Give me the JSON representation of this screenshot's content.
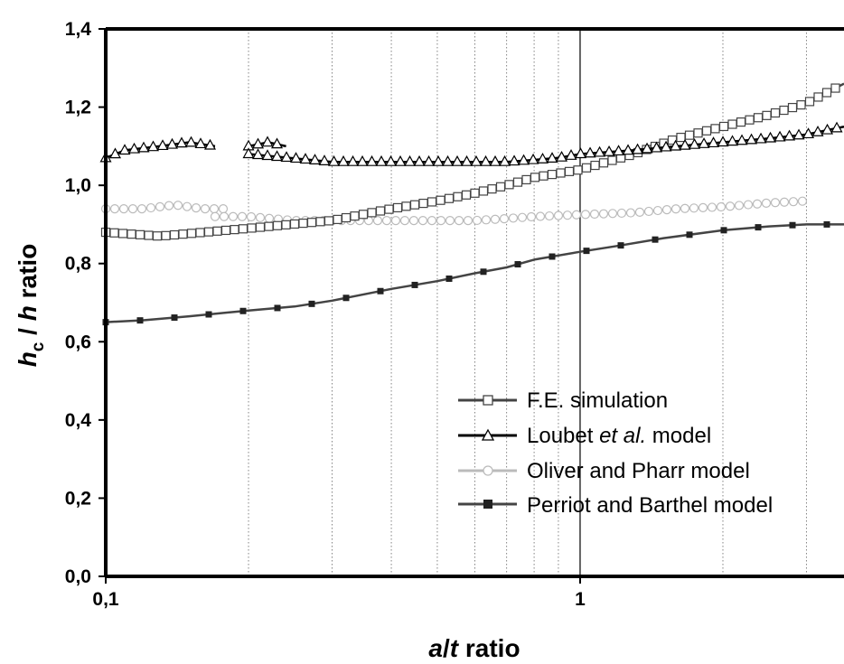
{
  "chart_data": {
    "type": "line",
    "title": "",
    "xlabel": {
      "italic": "a",
      "sep": "/",
      "italic2": "t",
      "rest": " ratio"
    },
    "ylabel": {
      "italic": "h",
      "sub": "c",
      "sep": " / ",
      "italic2": "h",
      "rest": " ratio"
    },
    "x_scale": "log",
    "xlim": [
      0.1,
      3.6
    ],
    "ylim": [
      0.0,
      1.4
    ],
    "x_ticks": [
      {
        "value": 0.1,
        "label": "0,1"
      },
      {
        "value": 1,
        "label": "1"
      }
    ],
    "y_ticks": [
      {
        "value": 0.0,
        "label": "0,0"
      },
      {
        "value": 0.2,
        "label": "0,2"
      },
      {
        "value": 0.4,
        "label": "0,4"
      },
      {
        "value": 0.6,
        "label": "0,6"
      },
      {
        "value": 0.8,
        "label": "0,8"
      },
      {
        "value": 1.0,
        "label": "1,0"
      },
      {
        "value": 1.2,
        "label": "1,2"
      },
      {
        "value": 1.4,
        "label": "1,4"
      }
    ],
    "x_gridlines": [
      0.2,
      0.3,
      0.4,
      0.5,
      0.6,
      0.7,
      0.8,
      0.9,
      1,
      2,
      3
    ],
    "legend_position": "bottom-right",
    "series": [
      {
        "name": "F.E. simulation",
        "color": "#444444",
        "marker": "open-square",
        "segments": [
          {
            "x": [
              0.1,
              0.13,
              0.2,
              0.3,
              0.4,
              0.5,
              0.6,
              0.7,
              0.8,
              1.0,
              1.3,
              1.6,
              2.0,
              2.5,
              3.0,
              3.6
            ],
            "y": [
              0.88,
              0.87,
              0.89,
              0.91,
              0.94,
              0.96,
              0.98,
              1.0,
              1.02,
              1.04,
              1.08,
              1.12,
              1.15,
              1.18,
              1.21,
              1.26
            ]
          }
        ]
      },
      {
        "name": "Loubet et al. model",
        "legend_parts": [
          "Loubet ",
          "et al.",
          " model"
        ],
        "color": "#000000",
        "marker": "open-triangle",
        "segments": [
          {
            "x": [
              0.1,
              0.11,
              0.13,
              0.15,
              0.17
            ],
            "y": [
              1.07,
              1.09,
              1.1,
              1.11,
              1.1
            ]
          },
          {
            "x": [
              0.2,
              0.22,
              0.24
            ],
            "y": [
              1.1,
              1.11,
              1.1
            ]
          },
          {
            "x": [
              0.2,
              0.3,
              0.4,
              0.5,
              0.6,
              0.7,
              0.8,
              0.9,
              1.0,
              1.3,
              1.6,
              2.0,
              2.5,
              3.0,
              3.6
            ],
            "y": [
              1.08,
              1.06,
              1.06,
              1.06,
              1.06,
              1.06,
              1.065,
              1.07,
              1.08,
              1.09,
              1.1,
              1.11,
              1.12,
              1.13,
              1.15
            ]
          }
        ]
      },
      {
        "name": "Oliver and Pharr model",
        "color": "#bbbbbb",
        "marker": "open-circle",
        "segments": [
          {
            "x": [
              0.1,
              0.12,
              0.14,
              0.16,
              0.18
            ],
            "y": [
              0.94,
              0.94,
              0.95,
              0.94,
              0.94
            ]
          },
          {
            "x": [
              0.17,
              0.2,
              0.25,
              0.3,
              0.4,
              0.5,
              0.6,
              0.7,
              0.8,
              1.0,
              1.3,
              1.6,
              2.0,
              2.5,
              3.0
            ],
            "y": [
              0.92,
              0.92,
              0.91,
              0.91,
              0.91,
              0.91,
              0.91,
              0.915,
              0.92,
              0.925,
              0.93,
              0.94,
              0.945,
              0.955,
              0.96
            ]
          }
        ]
      },
      {
        "name": "Perriot and Barthel model",
        "color": "#444444",
        "marker": "filled-square",
        "segments": [
          {
            "x": [
              0.1,
              0.12,
              0.15,
              0.2,
              0.25,
              0.3,
              0.4,
              0.5,
              0.6,
              0.7,
              0.8,
              1.0,
              1.2,
              1.5,
              2.0,
              2.5,
              3.0,
              3.6
            ],
            "y": [
              0.65,
              0.655,
              0.665,
              0.68,
              0.69,
              0.705,
              0.735,
              0.755,
              0.775,
              0.79,
              0.81,
              0.83,
              0.845,
              0.865,
              0.885,
              0.895,
              0.9,
              0.9
            ]
          }
        ]
      }
    ]
  }
}
